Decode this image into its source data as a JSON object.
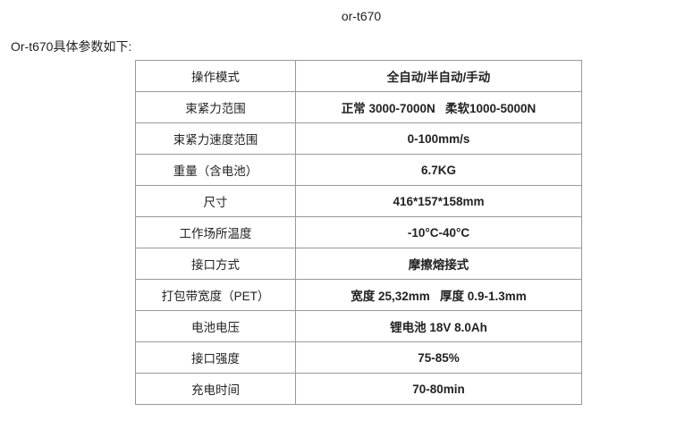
{
  "title": "or-t670",
  "intro": "Or-t670具体参数如下:",
  "specs": [
    {
      "label": "操作模式",
      "value": "全自动/半自动/手动"
    },
    {
      "label": "束紧力范围",
      "value": "正常 3000-7000N   柔软1000-5000N"
    },
    {
      "label": "束紧力速度范围",
      "value": "0-100mm/s"
    },
    {
      "label": "重量（含电池）",
      "value": "6.7KG"
    },
    {
      "label": "尺寸",
      "value": "416*157*158mm"
    },
    {
      "label": "工作场所温度",
      "value": "-10°C-40°C"
    },
    {
      "label": "接口方式",
      "value": "摩擦熔接式"
    },
    {
      "label": "打包带宽度（PET）",
      "value": "宽度 25,32mm   厚度 0.9-1.3mm"
    },
    {
      "label": "电池电压",
      "value": "锂电池 18V 8.0Ah"
    },
    {
      "label": "接口强度",
      "value": "75-85%"
    },
    {
      "label": "充电时间",
      "value": "70-80min"
    }
  ]
}
